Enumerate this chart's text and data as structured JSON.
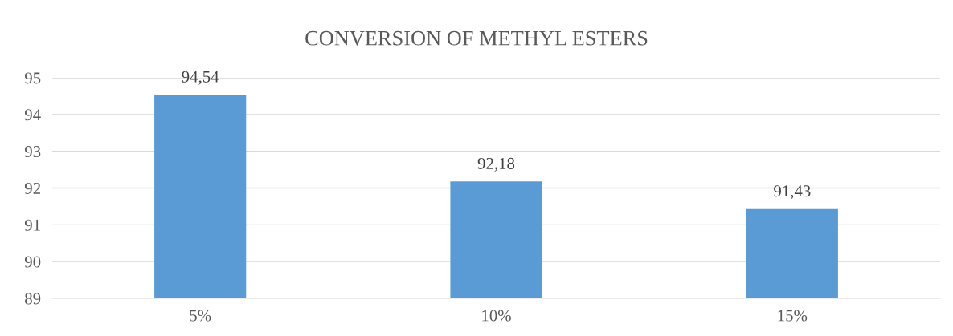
{
  "chart_data": {
    "type": "bar",
    "title": "CONVERSION OF METHYL ESTERS",
    "categories": [
      "5%",
      "10%",
      "15%"
    ],
    "values": [
      94.54,
      92.18,
      91.43
    ],
    "value_labels": [
      "94,54",
      "92,18",
      "91,43"
    ],
    "color": "#5b9bd5",
    "ylim": [
      89,
      95
    ],
    "yticks": [
      89,
      90,
      91,
      92,
      93,
      94,
      95
    ],
    "grid": "y",
    "legend": false
  }
}
